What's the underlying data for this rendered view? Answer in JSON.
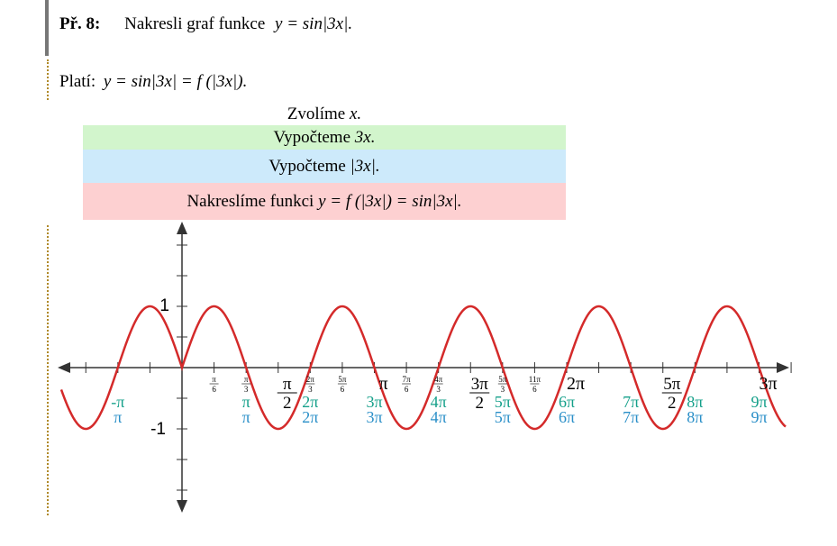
{
  "header": {
    "label": "Př. 8:",
    "text": "Nakresli graf funkce",
    "formula": "y = sin|3x|."
  },
  "statement": {
    "text": "Platí:",
    "formula": "y = sin|3x| = f (|3x|)."
  },
  "steps": [
    {
      "text": "Zvolíme",
      "formula": "x."
    },
    {
      "text": "Vypočteme",
      "formula": "3x."
    },
    {
      "text": "Vypočteme",
      "formula": "|3x|."
    },
    {
      "text": "Nakreslíme funkci",
      "formula": "y = f (|3x|) = sin|3x|."
    }
  ],
  "graph": {
    "y_labels": [
      "1",
      "-1"
    ],
    "x_labels": [
      {
        "num": "π",
        "den": "6"
      },
      {
        "num": "π",
        "den": "3"
      },
      {
        "num": "π",
        "den": "2"
      },
      {
        "num": "2π",
        "den": "3"
      },
      {
        "num": "5π",
        "den": "6"
      },
      {
        "num": "π",
        "den": null
      },
      {
        "num": "7π",
        "den": "6"
      },
      {
        "num": "4π",
        "den": "3"
      },
      {
        "num": "3π",
        "den": "2"
      },
      {
        "num": "5π",
        "den": "3"
      },
      {
        "num": "11π",
        "den": "6"
      },
      {
        "num": "2π",
        "den": null
      },
      {
        "num": "5π",
        "den": "2"
      },
      {
        "num": "3π",
        "den": null
      }
    ],
    "values_3x": [
      "-π",
      "π",
      "2π",
      "3π",
      "4π",
      "5π",
      "6π",
      "7π",
      "8π",
      "9π"
    ],
    "values_abs_3x": [
      "π",
      "π",
      "2π",
      "3π",
      "4π",
      "5π",
      "6π",
      "7π",
      "8π",
      "9π"
    ]
  }
}
